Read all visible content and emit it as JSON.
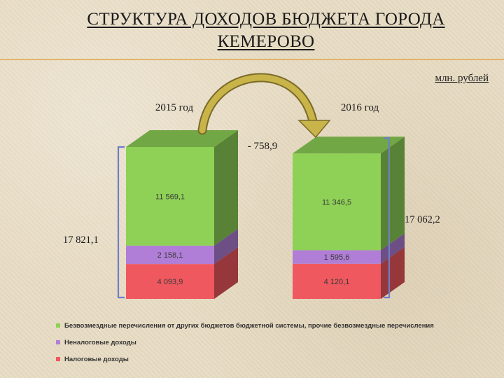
{
  "title_line1": "СТРУКТУРА ДОХОДОВ БЮДЖЕТА ГОРОДА",
  "title_line2": "КЕМЕРОВО",
  "units": "млн. рублей",
  "change_label": "- 758,9",
  "colors": {
    "bezvozmezdnye": "#8ed156",
    "nenalogovye": "#b07ed6",
    "nalogovye": "#f0585f",
    "arrow": "#c9b44a",
    "brace": "#6f7ec8"
  },
  "chart_data": {
    "type": "bar",
    "stacked": true,
    "categories": [
      "2015 год",
      "2016 год"
    ],
    "series": [
      {
        "name": "Налоговые доходы",
        "values": [
          4093.9,
          4120.1
        ],
        "labels": [
          "4 093,9",
          "4 120,1"
        ]
      },
      {
        "name": "Неналоговые доходы",
        "values": [
          2158.1,
          1595.6
        ],
        "labels": [
          "2 158,1",
          "1 595,6"
        ]
      },
      {
        "name": "Безвозмездные перечисления от других  бюджетов бюджетной системы, прочие безвозмездные перечисления",
        "values": [
          11569.1,
          11346.5
        ],
        "labels": [
          "11 569,1",
          "11 346,5"
        ]
      }
    ],
    "totals": [
      "17 821,1",
      "17 062,2"
    ],
    "total_values": [
      17821.1,
      17062.2
    ],
    "legend_position": "bottom-left"
  }
}
